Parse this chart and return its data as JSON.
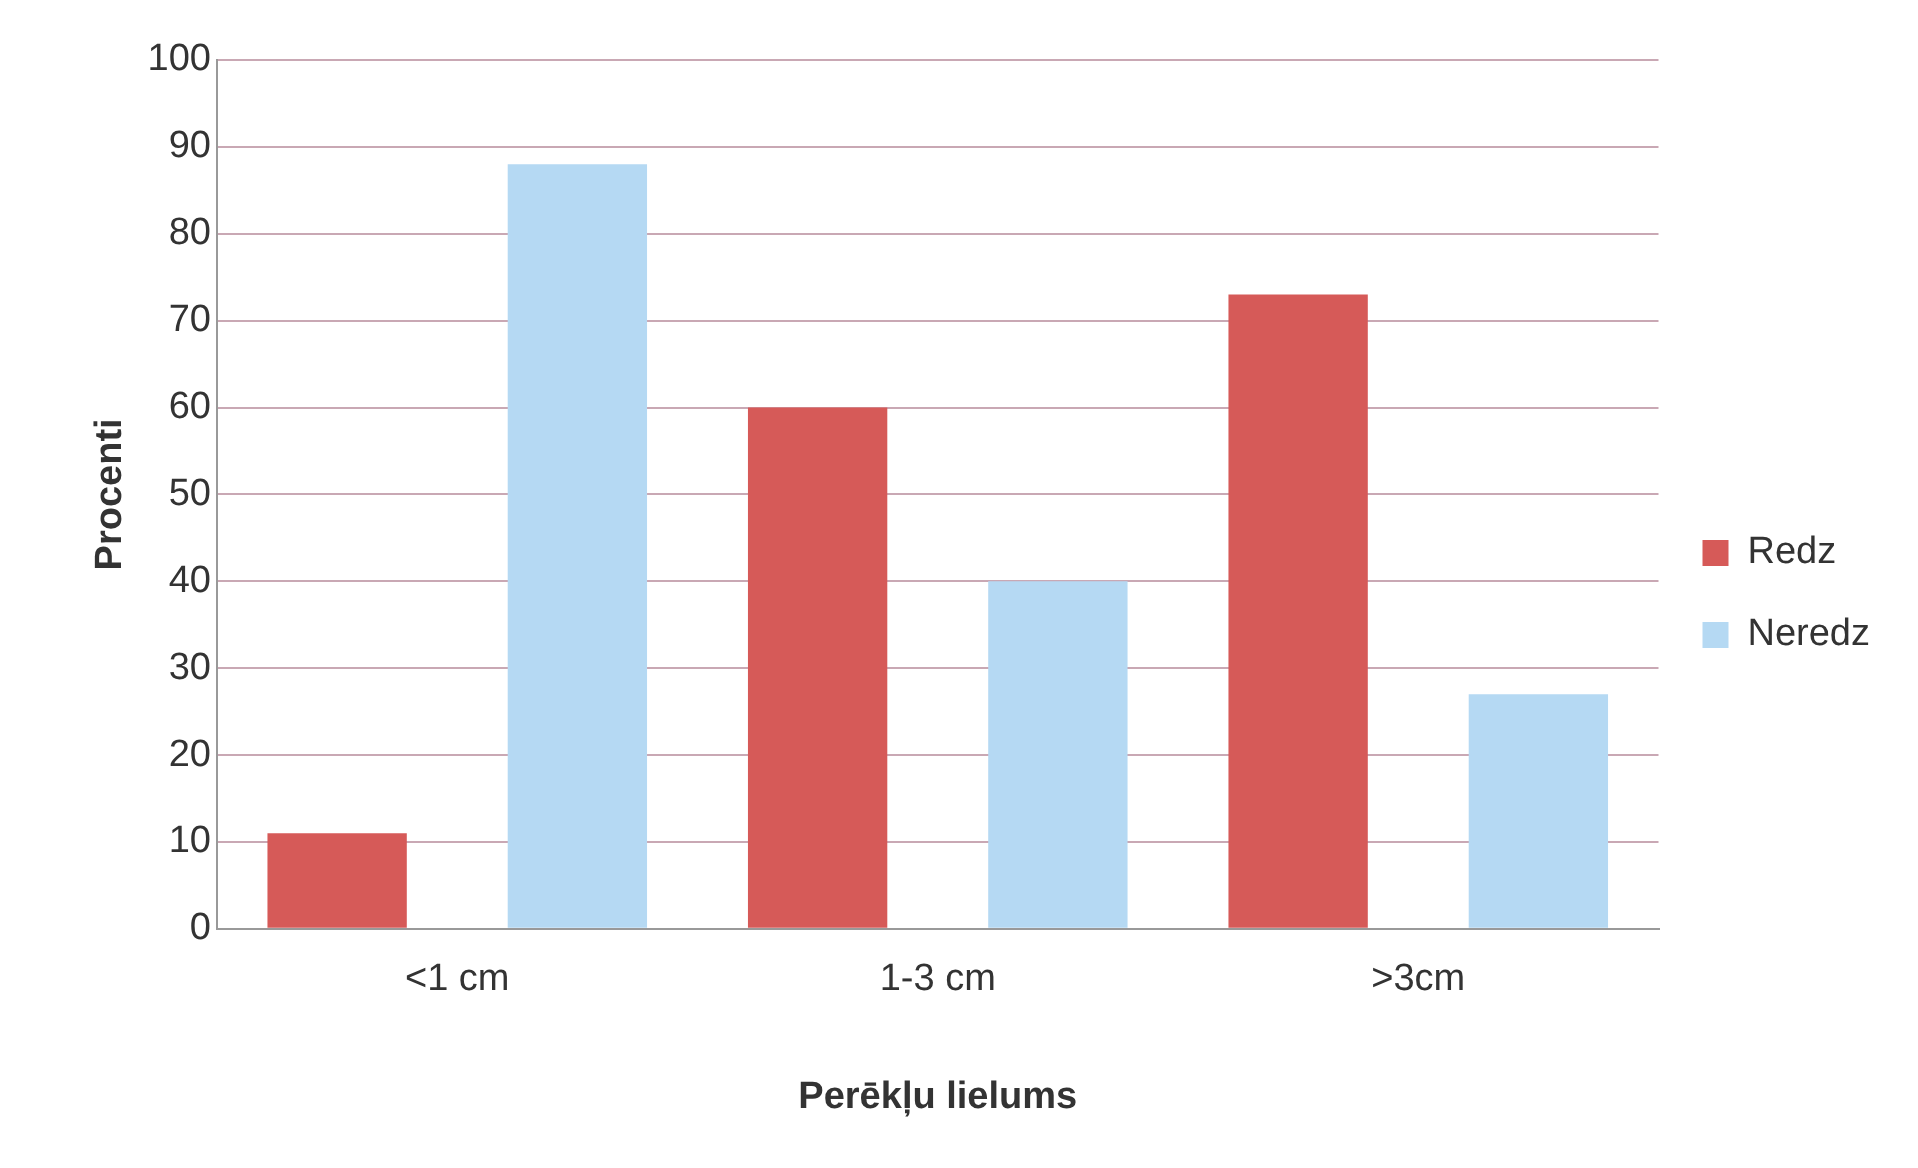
{
  "chart_data": {
    "type": "bar",
    "xlabel": "Perēkļu lielums",
    "ylabel": "Procenti",
    "categories": [
      "<1 cm",
      "1-3 cm",
      ">3cm"
    ],
    "series": [
      {
        "name": "Redz",
        "color": "#d65a58",
        "values": [
          11,
          60,
          73
        ]
      },
      {
        "name": "Neredz",
        "color": "#b5d9f3",
        "values": [
          88,
          40,
          27
        ]
      }
    ],
    "ylim": [
      0,
      100
    ],
    "yticks": [
      0,
      10,
      20,
      30,
      40,
      50,
      60,
      70,
      80,
      90,
      100
    ],
    "grid": "y",
    "legend": "right"
  }
}
